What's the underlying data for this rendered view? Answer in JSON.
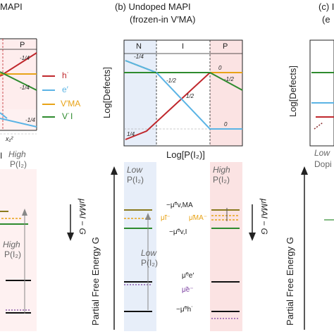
{
  "panel_a": {
    "title": "MAPI",
    "region_p": "P",
    "x_tick": "x₁²",
    "legend": [
      "h˙",
      "e′",
      "V′MA",
      "V˙I"
    ],
    "slopes": [
      "-1/4",
      "-1/4",
      "-1/4"
    ],
    "high_label": "High",
    "high_sub": "P(I₂)",
    "left_mark": "I",
    "y_label": "μMAI − G",
    "high2": "High",
    "high2_sub": "P(I₂)"
  },
  "panel_b": {
    "title": "(b) Undoped MAPI",
    "subtitle": "(frozen-in V′MA)",
    "regions": [
      "N",
      "I",
      "P"
    ],
    "y_label": "Log[Defects]",
    "x_label": "Log[P(I₂)]",
    "slopes": [
      "1/4",
      "-1/4",
      "-1/2",
      "1/2",
      "-1/2",
      "0",
      "0",
      "1/4"
    ],
    "low_label": "Low",
    "low_sub": "P(I₂)",
    "high_label": "High",
    "high_sub": "P(I₂)",
    "energy_label": "Partial Free Energy G",
    "right_label": "μMAI − G",
    "levels": [
      "−μ̃⁰v,MA",
      "μ̃I⁻",
      "μ̃MA⁻",
      "−μ̃⁰v,I",
      "μ̃⁰e′",
      "μ̃e⁻",
      "−μ̃⁰h˙"
    ],
    "low2": "Low",
    "low2_sub": "P(I₂)"
  },
  "panel_c": {
    "title": "(c) I",
    "subtitle": "(e",
    "y_label": "Log[Defects]",
    "x_label": "Low",
    "x_sub": "Dopi",
    "energy_label": "Partial Free Energy G"
  },
  "colors": {
    "h": "#c0282d",
    "e": "#5bb4e5",
    "vma": "#e8a317",
    "vi": "#2e8b2e",
    "olive": "#8a7a1e",
    "purple": "#7a3fa0"
  }
}
